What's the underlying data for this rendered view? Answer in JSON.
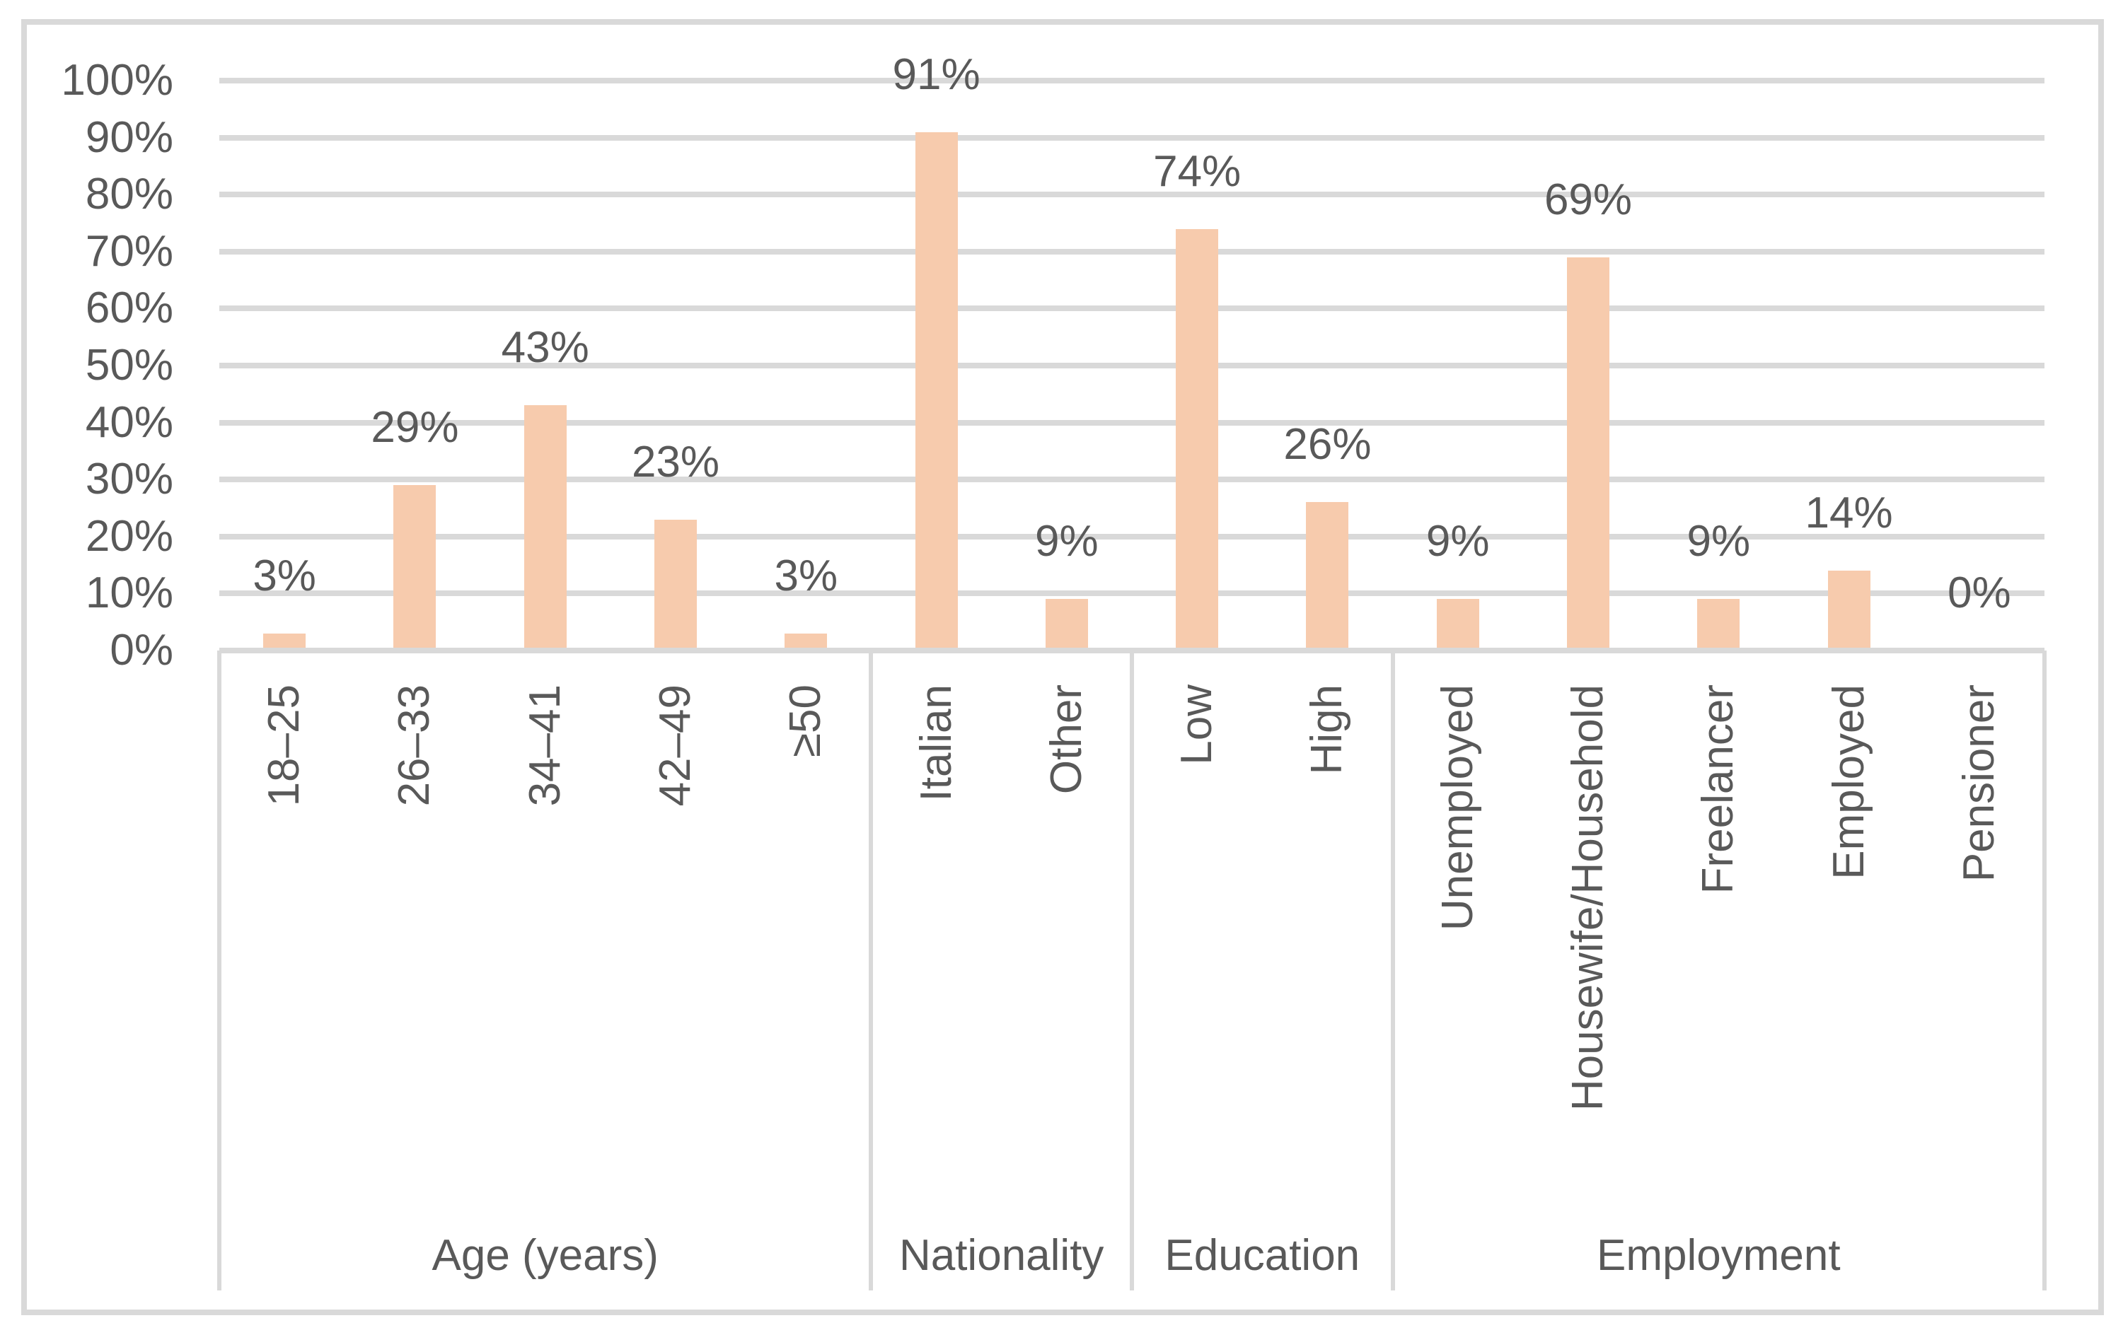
{
  "chart_data": {
    "type": "bar",
    "title": "",
    "xlabel": "",
    "ylabel": "",
    "ylim": [
      0,
      100
    ],
    "grid": true,
    "y_axis": {
      "tick_labels": [
        "0%",
        "10%",
        "20%",
        "30%",
        "40%",
        "50%",
        "60%",
        "70%",
        "80%",
        "90%",
        "100%"
      ],
      "tick_values": [
        0,
        10,
        20,
        30,
        40,
        50,
        60,
        70,
        80,
        90,
        100
      ]
    },
    "groups": [
      {
        "label": "Age (years)",
        "categories": [
          "18–25",
          "26–33",
          "34–41",
          "42–49",
          "≥50"
        ],
        "values": [
          3,
          29,
          43,
          23,
          3
        ],
        "value_labels": [
          "3%",
          "29%",
          "43%",
          "23%",
          "3%"
        ]
      },
      {
        "label": "Nationality",
        "categories": [
          "Italian",
          "Other"
        ],
        "values": [
          91,
          9
        ],
        "value_labels": [
          "91%",
          "9%"
        ]
      },
      {
        "label": "Education",
        "categories": [
          "Low",
          "High"
        ],
        "values": [
          74,
          26
        ],
        "value_labels": [
          "74%",
          "26%"
        ]
      },
      {
        "label": "Employment",
        "categories": [
          "Unemployed",
          "Housewife/Household",
          "Freelancer",
          "Employed",
          "Pensioner"
        ],
        "values": [
          9,
          69,
          9,
          14,
          0
        ],
        "value_labels": [
          "9%",
          "69%",
          "9%",
          "14%",
          "0%"
        ]
      }
    ],
    "colors": {
      "bar_fill": "#f7cbad",
      "gridline": "#d9d9d9",
      "axis_line": "#d9d9d9",
      "border": "#d9d9d9",
      "text": "#595959",
      "background": "#ffffff"
    },
    "legend": null
  }
}
